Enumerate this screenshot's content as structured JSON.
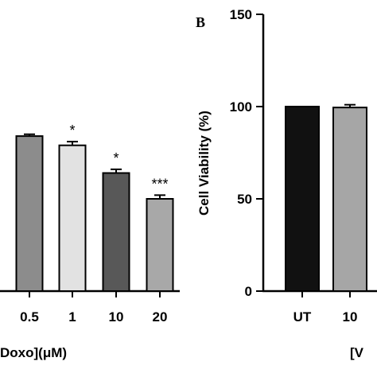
{
  "chart_data": [
    {
      "type": "bar",
      "panel_label": "",
      "categories": [
        "0.5",
        "1",
        "10",
        "20"
      ],
      "values": [
        84,
        79,
        64,
        50
      ],
      "errors": [
        1,
        2,
        2,
        2
      ],
      "significance": [
        "",
        "*",
        "*",
        "***"
      ],
      "colors": [
        "#8c8c8c",
        "#e2e2e2",
        "#585858",
        "#a8a8a8"
      ],
      "xlabel": "Doxo](μM)",
      "ylabel": "",
      "ylim": [
        0,
        150
      ]
    },
    {
      "type": "bar",
      "panel_label": "B",
      "categories": [
        "UT",
        "10"
      ],
      "values": [
        100,
        99.5
      ],
      "errors": [
        0,
        1.5
      ],
      "colors": [
        "#111111",
        "#a6a6a6"
      ],
      "xlabel": "[V",
      "ylabel": "Cell Viability (%)",
      "yticks": [
        "0",
        "50",
        "100",
        "150"
      ],
      "ylim": [
        0,
        150
      ]
    }
  ]
}
